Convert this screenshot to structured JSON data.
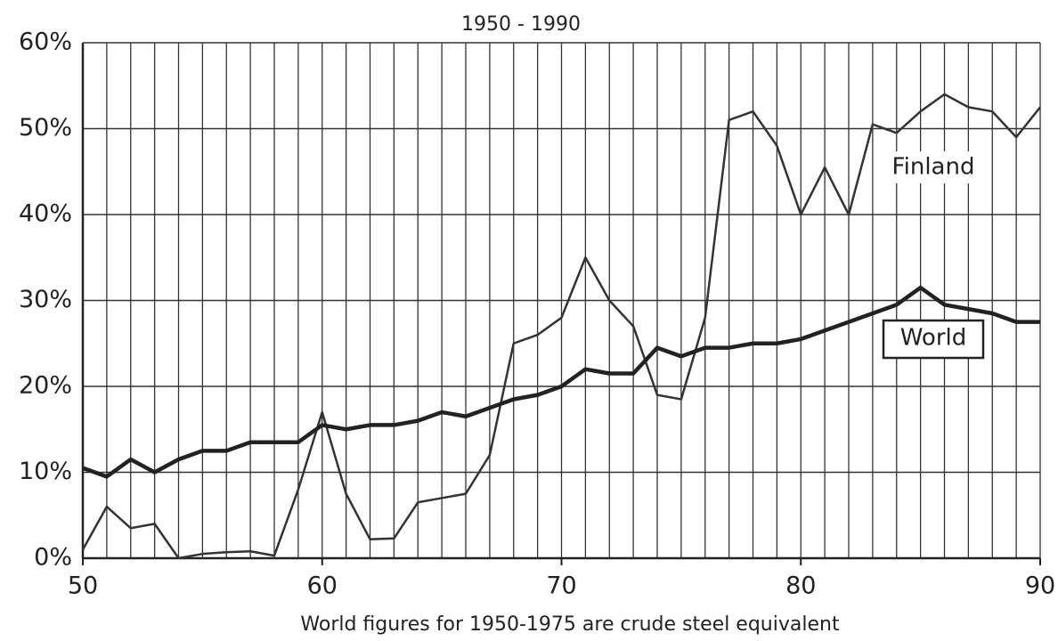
{
  "chart_data": {
    "type": "line",
    "title": "1950 - 1990",
    "x_label": "World figures for 1950-1975 are crude steel equivalent",
    "x": [
      50,
      51,
      52,
      53,
      54,
      55,
      56,
      57,
      58,
      59,
      60,
      61,
      62,
      63,
      64,
      65,
      66,
      67,
      68,
      69,
      70,
      71,
      72,
      73,
      74,
      75,
      76,
      77,
      78,
      79,
      80,
      81,
      82,
      83,
      84,
      85,
      86,
      87,
      88,
      89,
      90
    ],
    "series": [
      {
        "name": "Finland",
        "color": "#333333",
        "values": [
          1,
          6,
          3.5,
          4,
          0,
          0.5,
          0.7,
          0.8,
          0.3,
          8,
          17,
          7.5,
          2.2,
          2.3,
          6.5,
          7,
          7.5,
          12,
          25,
          26,
          28,
          35,
          30,
          27,
          19,
          18.5,
          28,
          51,
          52,
          48,
          40,
          45.5,
          40,
          50.5,
          49.5,
          52,
          54,
          52.5,
          52,
          49,
          52.5
        ]
      },
      {
        "name": "World",
        "color": "#222222",
        "values": [
          10.5,
          9.5,
          11.5,
          10,
          11.5,
          12.5,
          12.5,
          13.5,
          13.5,
          13.5,
          15.5,
          15,
          15.5,
          15.5,
          16,
          17,
          16.5,
          17.5,
          18.5,
          19,
          20,
          22,
          21.5,
          21.5,
          24.5,
          23.5,
          24.5,
          24.5,
          25,
          25,
          25.5,
          26.5,
          27.5,
          28.5,
          29.5,
          31.5,
          29.5,
          29,
          28.5,
          27.5,
          27.5
        ]
      }
    ],
    "xlim": [
      50,
      90
    ],
    "xticks": [
      50,
      60,
      70,
      80,
      90
    ],
    "ylim": [
      0,
      60
    ],
    "yticks": [
      {
        "value": 0,
        "label": "0%"
      },
      {
        "value": 10,
        "label": "10%"
      },
      {
        "value": 20,
        "label": "20%"
      },
      {
        "value": 30,
        "label": "30%"
      },
      {
        "value": 40,
        "label": "40%"
      },
      {
        "value": 50,
        "label": "50%"
      },
      {
        "value": 60,
        "label": "60%"
      }
    ],
    "grid": true
  }
}
